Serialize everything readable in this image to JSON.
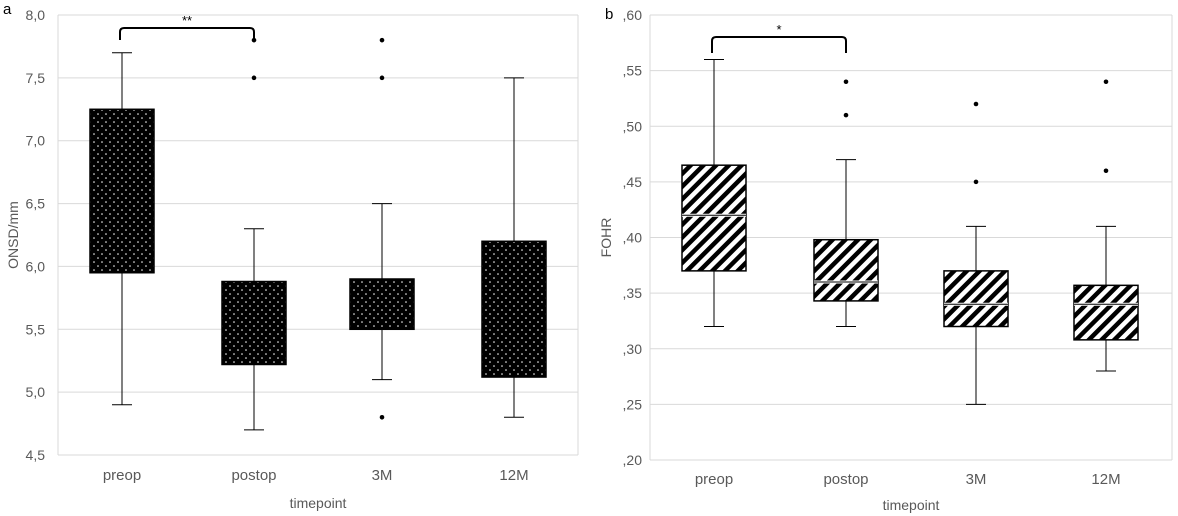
{
  "chart_data": [
    {
      "panel": "a",
      "type": "box",
      "xlabel": "timepoint",
      "ylabel": "ONSD/mm",
      "ylim": [
        4.5,
        8.0
      ],
      "yticks": [
        "4,5",
        "5,0",
        "5,5",
        "6,0",
        "6,5",
        "7,0",
        "7,5",
        "8,0"
      ],
      "grid": true,
      "fill": "dotted",
      "categories": [
        "preop",
        "postop",
        "3M",
        "12M"
      ],
      "boxes": [
        {
          "category": "preop",
          "whisker_low": 4.9,
          "q1": 5.95,
          "median": 5.95,
          "q3": 7.25,
          "whisker_high": 7.7,
          "outliers": []
        },
        {
          "category": "postop",
          "whisker_low": 4.7,
          "q1": 5.22,
          "median": 5.22,
          "q3": 5.88,
          "whisker_high": 6.3,
          "outliers": [
            7.5,
            7.8
          ]
        },
        {
          "category": "3M",
          "whisker_low": 5.1,
          "q1": 5.5,
          "median": 5.5,
          "q3": 5.9,
          "whisker_high": 6.5,
          "outliers": [
            4.8,
            7.5,
            7.8
          ]
        },
        {
          "category": "12M",
          "whisker_low": 4.8,
          "q1": 5.12,
          "median": 5.12,
          "q3": 6.2,
          "whisker_high": 7.5,
          "outliers": []
        }
      ],
      "significance": {
        "from": "preop",
        "to": "postop",
        "label": "**"
      }
    },
    {
      "panel": "b",
      "type": "box",
      "xlabel": "timepoint",
      "ylabel": "FOHR",
      "ylim": [
        0.2,
        0.6
      ],
      "yticks": [
        ",20",
        ",25",
        ",30",
        ",35",
        ",40",
        ",45",
        ",50",
        ",55",
        ",60"
      ],
      "grid": true,
      "fill": "diagonal-hatch",
      "categories": [
        "preop",
        "postop",
        "3M",
        "12M"
      ],
      "boxes": [
        {
          "category": "preop",
          "whisker_low": 0.32,
          "q1": 0.37,
          "median": 0.42,
          "q3": 0.465,
          "whisker_high": 0.56,
          "outliers": []
        },
        {
          "category": "postop",
          "whisker_low": 0.32,
          "q1": 0.343,
          "median": 0.36,
          "q3": 0.398,
          "whisker_high": 0.47,
          "outliers": [
            0.51,
            0.54
          ]
        },
        {
          "category": "3M",
          "whisker_low": 0.25,
          "q1": 0.32,
          "median": 0.34,
          "q3": 0.37,
          "whisker_high": 0.41,
          "outliers": [
            0.45,
            0.52
          ]
        },
        {
          "category": "12M",
          "whisker_low": 0.28,
          "q1": 0.308,
          "median": 0.34,
          "q3": 0.357,
          "whisker_high": 0.41,
          "outliers": [
            0.46,
            0.54
          ]
        }
      ],
      "significance": {
        "from": "preop",
        "to": "postop",
        "label": "*"
      }
    }
  ]
}
